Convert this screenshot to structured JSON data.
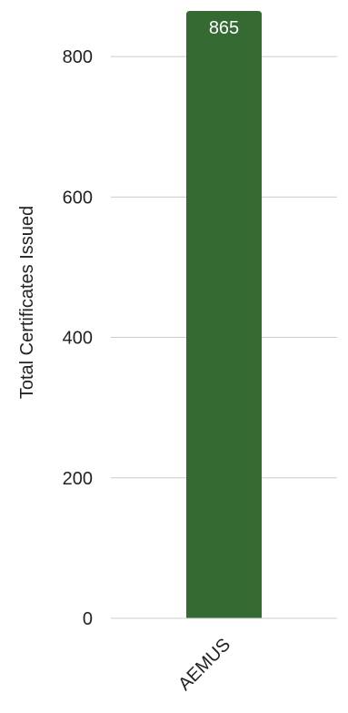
{
  "chart_data": {
    "type": "bar",
    "categories": [
      "AEMUS"
    ],
    "values": [
      865
    ],
    "data_labels": [
      "865"
    ],
    "ylabel": "Total Certificates Issued",
    "xlabel": "",
    "title": "",
    "ylim": [
      0,
      865
    ],
    "yticks": [
      0,
      200,
      400,
      600,
      800
    ],
    "ytick_labels": [
      "0",
      "200",
      "400",
      "600",
      "800"
    ],
    "grid": true,
    "legend": "none",
    "colors": {
      "bar": "#356a33",
      "grid": "#cccccc",
      "text": "#222222",
      "data_label": "#ffffff"
    }
  }
}
